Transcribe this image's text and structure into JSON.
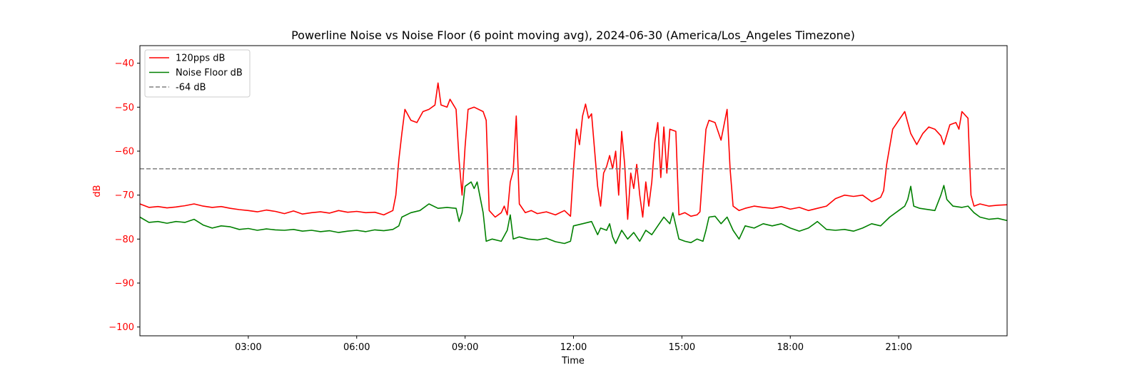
{
  "chart_data": {
    "type": "line",
    "title": "Powerline Noise vs Noise Floor (6 point moving avg), 2024-06-30 (America/Los_Angeles Timezone)",
    "xlabel": "Time",
    "ylabel": "dB",
    "xlim": [
      "00:00",
      "24:00"
    ],
    "ylim": [
      -102,
      -36
    ],
    "x_ticks": [
      "03:00",
      "06:00",
      "09:00",
      "12:00",
      "15:00",
      "18:00",
      "21:00"
    ],
    "y_ticks": [
      -40,
      -50,
      -60,
      -70,
      -80,
      -90,
      -100
    ],
    "y_tick_labels": [
      "−40",
      "−50",
      "−60",
      "−70",
      "−80",
      "−90",
      "−100"
    ],
    "grid": false,
    "legend_position": "top-left",
    "y_axis_color": "#ff0000",
    "series": [
      {
        "name": "120pps dB",
        "color": "#ff0000",
        "style": "solid",
        "points": [
          [
            "00:00",
            -72.0
          ],
          [
            "00:15",
            -72.8
          ],
          [
            "00:30",
            -72.6
          ],
          [
            "00:45",
            -72.9
          ],
          [
            "01:00",
            -72.7
          ],
          [
            "01:15",
            -72.4
          ],
          [
            "01:30",
            -72.0
          ],
          [
            "01:45",
            -72.5
          ],
          [
            "02:00",
            -72.8
          ],
          [
            "02:15",
            -72.6
          ],
          [
            "02:30",
            -73.0
          ],
          [
            "02:45",
            -73.3
          ],
          [
            "03:00",
            -73.5
          ],
          [
            "03:15",
            -73.8
          ],
          [
            "03:30",
            -73.4
          ],
          [
            "03:45",
            -73.7
          ],
          [
            "04:00",
            -74.2
          ],
          [
            "04:15",
            -73.6
          ],
          [
            "04:30",
            -74.3
          ],
          [
            "04:45",
            -74.0
          ],
          [
            "05:00",
            -73.8
          ],
          [
            "05:15",
            -74.1
          ],
          [
            "05:30",
            -73.5
          ],
          [
            "05:45",
            -73.9
          ],
          [
            "06:00",
            -73.7
          ],
          [
            "06:15",
            -74.0
          ],
          [
            "06:30",
            -73.9
          ],
          [
            "06:45",
            -74.5
          ],
          [
            "07:00",
            -73.5
          ],
          [
            "07:05",
            -70.0
          ],
          [
            "07:10",
            -62.0
          ],
          [
            "07:15",
            -56.0
          ],
          [
            "07:20",
            -50.5
          ],
          [
            "07:30",
            -53.0
          ],
          [
            "07:40",
            -53.5
          ],
          [
            "07:50",
            -51.0
          ],
          [
            "08:00",
            -50.5
          ],
          [
            "08:10",
            -49.5
          ],
          [
            "08:15",
            -44.5
          ],
          [
            "08:20",
            -49.5
          ],
          [
            "08:30",
            -50.0
          ],
          [
            "08:35",
            -48.2
          ],
          [
            "08:45",
            -50.5
          ],
          [
            "08:50",
            -62.0
          ],
          [
            "08:55",
            -70.0
          ],
          [
            "09:00",
            -59.0
          ],
          [
            "09:05",
            -50.5
          ],
          [
            "09:15",
            -50.0
          ],
          [
            "09:30",
            -51.0
          ],
          [
            "09:35",
            -53.0
          ],
          [
            "09:40",
            -73.5
          ],
          [
            "09:50",
            -75.0
          ],
          [
            "10:00",
            -74.0
          ],
          [
            "10:05",
            -72.5
          ],
          [
            "10:10",
            -74.5
          ],
          [
            "10:15",
            -67.0
          ],
          [
            "10:20",
            -64.5
          ],
          [
            "10:25",
            -52.0
          ],
          [
            "10:30",
            -72.0
          ],
          [
            "10:40",
            -74.0
          ],
          [
            "10:50",
            -73.5
          ],
          [
            "11:00",
            -74.2
          ],
          [
            "11:15",
            -73.8
          ],
          [
            "11:30",
            -74.5
          ],
          [
            "11:45",
            -73.5
          ],
          [
            "11:55",
            -74.8
          ],
          [
            "12:00",
            -64.0
          ],
          [
            "12:05",
            -55.0
          ],
          [
            "12:10",
            -58.5
          ],
          [
            "12:15",
            -52.0
          ],
          [
            "12:20",
            -49.3
          ],
          [
            "12:25",
            -52.5
          ],
          [
            "12:30",
            -51.5
          ],
          [
            "12:40",
            -68.0
          ],
          [
            "12:45",
            -72.5
          ],
          [
            "12:50",
            -65.0
          ],
          [
            "12:55",
            -63.5
          ],
          [
            "13:00",
            -61.0
          ],
          [
            "13:05",
            -64.0
          ],
          [
            "13:10",
            -60.0
          ],
          [
            "13:15",
            -70.0
          ],
          [
            "13:20",
            -55.5
          ],
          [
            "13:25",
            -63.0
          ],
          [
            "13:30",
            -75.5
          ],
          [
            "13:35",
            -65.0
          ],
          [
            "13:40",
            -68.5
          ],
          [
            "13:45",
            -63.0
          ],
          [
            "13:50",
            -70.0
          ],
          [
            "13:55",
            -75.0
          ],
          [
            "14:00",
            -67.0
          ],
          [
            "14:05",
            -72.5
          ],
          [
            "14:10",
            -67.0
          ],
          [
            "14:15",
            -58.0
          ],
          [
            "14:20",
            -53.5
          ],
          [
            "14:25",
            -66.0
          ],
          [
            "14:30",
            -54.5
          ],
          [
            "14:35",
            -65.0
          ],
          [
            "14:40",
            -55.0
          ],
          [
            "14:50",
            -55.5
          ],
          [
            "14:55",
            -74.5
          ],
          [
            "15:05",
            -74.0
          ],
          [
            "15:15",
            -74.8
          ],
          [
            "15:25",
            -74.5
          ],
          [
            "15:30",
            -73.8
          ],
          [
            "15:35",
            -64.0
          ],
          [
            "15:40",
            -55.0
          ],
          [
            "15:45",
            -53.0
          ],
          [
            "15:55",
            -53.5
          ],
          [
            "16:05",
            -57.5
          ],
          [
            "16:15",
            -50.5
          ],
          [
            "16:20",
            -64.0
          ],
          [
            "16:25",
            -72.5
          ],
          [
            "16:35",
            -73.5
          ],
          [
            "16:45",
            -73.0
          ],
          [
            "17:00",
            -72.5
          ],
          [
            "17:15",
            -72.8
          ],
          [
            "17:30",
            -73.0
          ],
          [
            "17:45",
            -72.6
          ],
          [
            "18:00",
            -73.2
          ],
          [
            "18:15",
            -72.8
          ],
          [
            "18:30",
            -73.5
          ],
          [
            "18:45",
            -73.0
          ],
          [
            "19:00",
            -72.5
          ],
          [
            "19:15",
            -70.8
          ],
          [
            "19:30",
            -70.0
          ],
          [
            "19:45",
            -70.3
          ],
          [
            "20:00",
            -70.0
          ],
          [
            "20:15",
            -71.5
          ],
          [
            "20:30",
            -70.5
          ],
          [
            "20:35",
            -69.0
          ],
          [
            "20:40",
            -63.0
          ],
          [
            "20:50",
            -55.0
          ],
          [
            "21:00",
            -53.0
          ],
          [
            "21:10",
            -51.0
          ],
          [
            "21:20",
            -56.0
          ],
          [
            "21:30",
            -58.5
          ],
          [
            "21:40",
            -56.0
          ],
          [
            "21:50",
            -54.5
          ],
          [
            "22:00",
            -55.0
          ],
          [
            "22:10",
            -56.5
          ],
          [
            "22:15",
            -58.5
          ],
          [
            "22:25",
            -54.0
          ],
          [
            "22:35",
            -53.5
          ],
          [
            "22:40",
            -55.0
          ],
          [
            "22:45",
            -51.0
          ],
          [
            "22:55",
            -52.5
          ],
          [
            "23:00",
            -70.0
          ],
          [
            "23:05",
            -72.5
          ],
          [
            "23:15",
            -72.0
          ],
          [
            "23:30",
            -72.5
          ],
          [
            "23:45",
            -72.3
          ],
          [
            "24:00",
            -72.2
          ]
        ]
      },
      {
        "name": "Noise Floor dB",
        "color": "#008000",
        "style": "solid",
        "points": [
          [
            "00:00",
            -75.0
          ],
          [
            "00:15",
            -76.2
          ],
          [
            "00:30",
            -76.0
          ],
          [
            "00:45",
            -76.4
          ],
          [
            "01:00",
            -76.0
          ],
          [
            "01:15",
            -76.2
          ],
          [
            "01:30",
            -75.5
          ],
          [
            "01:45",
            -76.8
          ],
          [
            "02:00",
            -77.5
          ],
          [
            "02:15",
            -77.0
          ],
          [
            "02:30",
            -77.2
          ],
          [
            "02:45",
            -77.8
          ],
          [
            "03:00",
            -77.6
          ],
          [
            "03:15",
            -78.0
          ],
          [
            "03:30",
            -77.7
          ],
          [
            "03:45",
            -77.9
          ],
          [
            "04:00",
            -78.0
          ],
          [
            "04:15",
            -77.8
          ],
          [
            "04:30",
            -78.2
          ],
          [
            "04:45",
            -78.0
          ],
          [
            "05:00",
            -78.3
          ],
          [
            "05:15",
            -78.1
          ],
          [
            "05:30",
            -78.5
          ],
          [
            "05:45",
            -78.2
          ],
          [
            "06:00",
            -78.0
          ],
          [
            "06:15",
            -78.3
          ],
          [
            "06:30",
            -77.9
          ],
          [
            "06:45",
            -78.1
          ],
          [
            "07:00",
            -77.8
          ],
          [
            "07:10",
            -77.0
          ],
          [
            "07:15",
            -75.0
          ],
          [
            "07:30",
            -74.0
          ],
          [
            "07:45",
            -73.5
          ],
          [
            "08:00",
            -72.0
          ],
          [
            "08:15",
            -73.0
          ],
          [
            "08:30",
            -72.8
          ],
          [
            "08:45",
            -73.0
          ],
          [
            "08:50",
            -76.0
          ],
          [
            "08:55",
            -74.0
          ],
          [
            "09:00",
            -68.0
          ],
          [
            "09:10",
            -67.0
          ],
          [
            "09:15",
            -68.5
          ],
          [
            "09:20",
            -67.0
          ],
          [
            "09:30",
            -74.0
          ],
          [
            "09:35",
            -80.5
          ],
          [
            "09:45",
            -80.0
          ],
          [
            "10:00",
            -80.5
          ],
          [
            "10:10",
            -78.0
          ],
          [
            "10:15",
            -74.5
          ],
          [
            "10:20",
            -80.0
          ],
          [
            "10:30",
            -79.5
          ],
          [
            "10:45",
            -80.0
          ],
          [
            "11:00",
            -80.2
          ],
          [
            "11:15",
            -79.8
          ],
          [
            "11:30",
            -80.6
          ],
          [
            "11:45",
            -81.0
          ],
          [
            "11:55",
            -80.5
          ],
          [
            "12:00",
            -77.0
          ],
          [
            "12:15",
            -76.5
          ],
          [
            "12:30",
            -76.0
          ],
          [
            "12:40",
            -79.0
          ],
          [
            "12:45",
            -77.5
          ],
          [
            "12:55",
            -78.0
          ],
          [
            "13:00",
            -76.5
          ],
          [
            "13:05",
            -79.5
          ],
          [
            "13:10",
            -81.0
          ],
          [
            "13:20",
            -78.0
          ],
          [
            "13:30",
            -80.0
          ],
          [
            "13:40",
            -78.5
          ],
          [
            "13:50",
            -80.5
          ],
          [
            "14:00",
            -78.0
          ],
          [
            "14:10",
            -79.0
          ],
          [
            "14:20",
            -77.0
          ],
          [
            "14:30",
            -75.0
          ],
          [
            "14:40",
            -76.5
          ],
          [
            "14:45",
            -74.0
          ],
          [
            "14:55",
            -80.0
          ],
          [
            "15:05",
            -80.5
          ],
          [
            "15:15",
            -80.8
          ],
          [
            "15:25",
            -80.0
          ],
          [
            "15:35",
            -80.5
          ],
          [
            "15:40",
            -78.0
          ],
          [
            "15:45",
            -75.0
          ],
          [
            "15:55",
            -74.8
          ],
          [
            "16:05",
            -76.5
          ],
          [
            "16:15",
            -75.0
          ],
          [
            "16:25",
            -78.0
          ],
          [
            "16:35",
            -80.0
          ],
          [
            "16:45",
            -77.0
          ],
          [
            "17:00",
            -77.5
          ],
          [
            "17:15",
            -76.5
          ],
          [
            "17:30",
            -77.0
          ],
          [
            "17:45",
            -76.5
          ],
          [
            "18:00",
            -77.5
          ],
          [
            "18:15",
            -78.2
          ],
          [
            "18:30",
            -77.5
          ],
          [
            "18:45",
            -76.0
          ],
          [
            "19:00",
            -77.8
          ],
          [
            "19:15",
            -78.0
          ],
          [
            "19:30",
            -77.8
          ],
          [
            "19:45",
            -78.2
          ],
          [
            "20:00",
            -77.5
          ],
          [
            "20:15",
            -76.5
          ],
          [
            "20:30",
            -77.0
          ],
          [
            "20:45",
            -75.0
          ],
          [
            "21:00",
            -73.5
          ],
          [
            "21:10",
            -72.5
          ],
          [
            "21:15",
            -71.0
          ],
          [
            "21:20",
            -68.0
          ],
          [
            "21:25",
            -72.5
          ],
          [
            "21:35",
            -73.0
          ],
          [
            "21:45",
            -73.2
          ],
          [
            "22:00",
            -73.5
          ],
          [
            "22:10",
            -70.0
          ],
          [
            "22:15",
            -67.8
          ],
          [
            "22:20",
            -71.0
          ],
          [
            "22:30",
            -72.5
          ],
          [
            "22:45",
            -72.8
          ],
          [
            "22:55",
            -72.5
          ],
          [
            "23:05",
            -74.0
          ],
          [
            "23:15",
            -75.0
          ],
          [
            "23:30",
            -75.5
          ],
          [
            "23:45",
            -75.3
          ],
          [
            "24:00",
            -75.8
          ]
        ]
      },
      {
        "name": "-64 dB",
        "color": "#808080",
        "style": "dashed",
        "points": [
          [
            "00:00",
            -64
          ],
          [
            "24:00",
            -64
          ]
        ]
      }
    ]
  }
}
